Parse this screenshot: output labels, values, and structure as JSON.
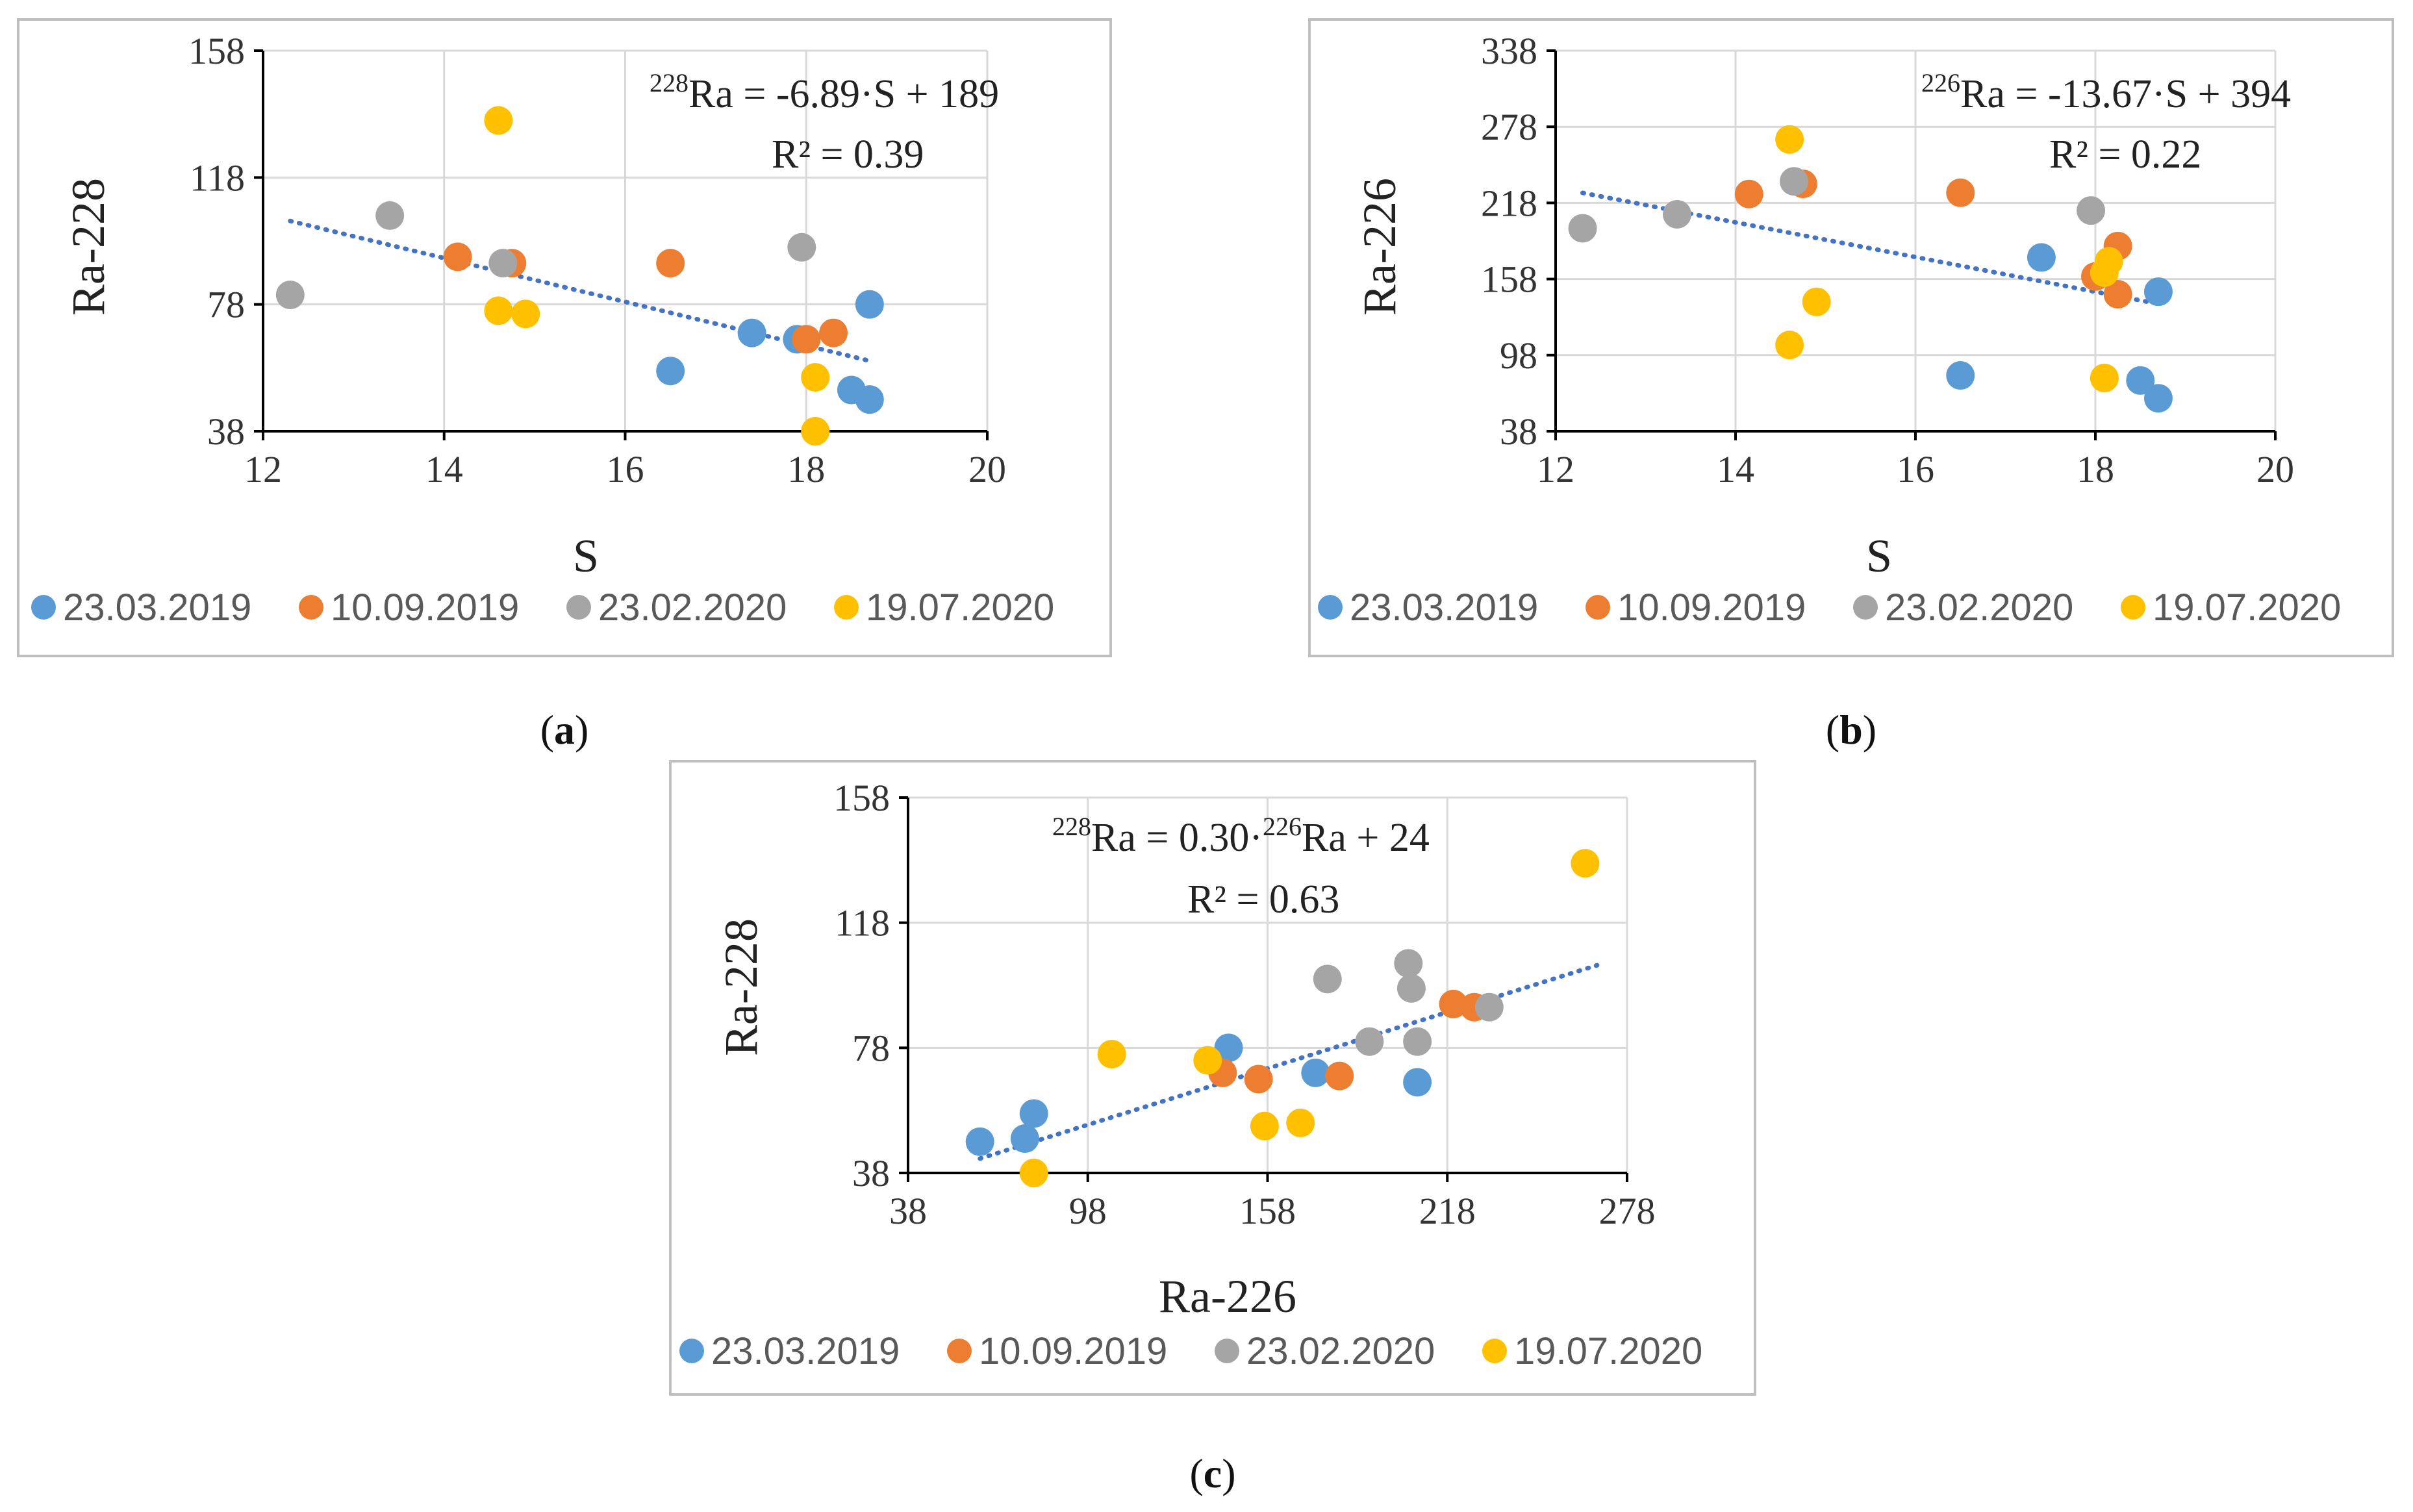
{
  "colors": {
    "s1": "#5B9BD5",
    "s2": "#ED7D31",
    "s3": "#A5A5A5",
    "s4": "#FFC000",
    "trend": "#4472C4",
    "grid": "#D9D9D9",
    "frame": "#BFBFBF"
  },
  "chart_data": [
    {
      "type": "scatter",
      "id": "a",
      "caption": {
        "open": "(",
        "letter": "a",
        "close": ")"
      },
      "xlabel": "S",
      "ylabel": "Ra-228",
      "xlim": [
        12,
        20
      ],
      "ylim": [
        38,
        158
      ],
      "xticks": [
        12,
        14,
        16,
        18,
        20
      ],
      "yticks": [
        38,
        78,
        118,
        158
      ],
      "grid": true,
      "legend": "bottom",
      "equation": {
        "sup": "228",
        "text": "Ra = -6.89·S + 189"
      },
      "r2": "R² = 0.39",
      "trendline": {
        "x": [
          12.3,
          18.7
        ],
        "y": [
          104.3,
          60.2
        ]
      },
      "series": [
        {
          "name": "23.03.2019",
          "x": [
            16.5,
            17.4,
            17.9,
            18.5,
            18.7,
            18.7
          ],
          "y": [
            57,
            69,
            67,
            51,
            48,
            78
          ]
        },
        {
          "name": "10.09.2019",
          "x": [
            14.15,
            14.75,
            16.5,
            18.0,
            18.3
          ],
          "y": [
            93,
            91,
            91,
            67,
            69
          ]
        },
        {
          "name": "23.02.2020",
          "x": [
            12.3,
            13.4,
            14.65,
            17.95
          ],
          "y": [
            81,
            106,
            91,
            96
          ]
        },
        {
          "name": "19.07.2020",
          "x": [
            14.6,
            14.6,
            14.9,
            18.1,
            18.1
          ],
          "y": [
            136,
            76,
            75,
            55,
            38
          ]
        }
      ]
    },
    {
      "type": "scatter",
      "id": "b",
      "caption": {
        "open": "(",
        "letter": "b",
        "close": ")"
      },
      "xlabel": "S",
      "ylabel": "Ra-226",
      "xlim": [
        12,
        20
      ],
      "ylim": [
        38,
        338
      ],
      "xticks": [
        12,
        14,
        16,
        18,
        20
      ],
      "yticks": [
        38,
        98,
        158,
        218,
        278,
        338
      ],
      "grid": true,
      "legend": "bottom",
      "equation": {
        "sup": "226",
        "text": "Ra = -13.67·S + 394"
      },
      "r2": "R² = 0.22",
      "trendline": {
        "x": [
          12.3,
          18.7
        ],
        "y": [
          225.9,
          138.4
        ]
      },
      "series": [
        {
          "name": "23.03.2019",
          "x": [
            16.5,
            17.4,
            18.5,
            18.7,
            18.7
          ],
          "y": [
            82,
            175,
            78,
            64,
            148
          ]
        },
        {
          "name": "10.09.2019",
          "x": [
            14.15,
            14.75,
            16.5,
            18.0,
            18.25,
            18.25
          ],
          "y": [
            225,
            233,
            226,
            160,
            184,
            146
          ]
        },
        {
          "name": "23.02.2020",
          "x": [
            12.3,
            13.35,
            14.65,
            17.95
          ],
          "y": [
            198,
            209,
            235,
            212
          ]
        },
        {
          "name": "19.07.2020",
          "x": [
            14.6,
            14.6,
            14.9,
            18.1,
            18.1,
            18.15
          ],
          "y": [
            268,
            106,
            140,
            80,
            163,
            172
          ]
        }
      ]
    },
    {
      "type": "scatter",
      "id": "c",
      "caption": {
        "open": "(",
        "letter": "c",
        "close": ")"
      },
      "xlabel": "Ra-226",
      "ylabel": "Ra-228",
      "xlim": [
        38,
        278
      ],
      "ylim": [
        38,
        158
      ],
      "xticks": [
        38,
        98,
        158,
        218,
        278
      ],
      "yticks": [
        38,
        78,
        118,
        158
      ],
      "grid": true,
      "legend": "bottom",
      "equation": {
        "sup": "228",
        "mid": "Ra = 0.30·",
        "sup2": "226",
        "text": "Ra + 24"
      },
      "r2": "R² = 0.63",
      "trendline": {
        "x": [
          62,
          268
        ],
        "y": [
          42.6,
          104.4
        ]
      },
      "series": [
        {
          "name": "23.03.2019",
          "x": [
            62,
            77,
            80,
            145,
            174,
            208
          ],
          "y": [
            48,
            49,
            57,
            78,
            70,
            67
          ]
        },
        {
          "name": "10.09.2019",
          "x": [
            143,
            155,
            182,
            220,
            227
          ],
          "y": [
            70,
            68,
            69,
            92,
            91
          ]
        },
        {
          "name": "23.02.2020",
          "x": [
            178,
            192,
            205,
            206,
            208,
            232
          ],
          "y": [
            100,
            80,
            105,
            97,
            80,
            91
          ]
        },
        {
          "name": "19.07.2020",
          "x": [
            80,
            106,
            138,
            157,
            169,
            264
          ],
          "y": [
            38,
            76,
            74,
            53,
            54,
            137
          ]
        }
      ]
    }
  ]
}
